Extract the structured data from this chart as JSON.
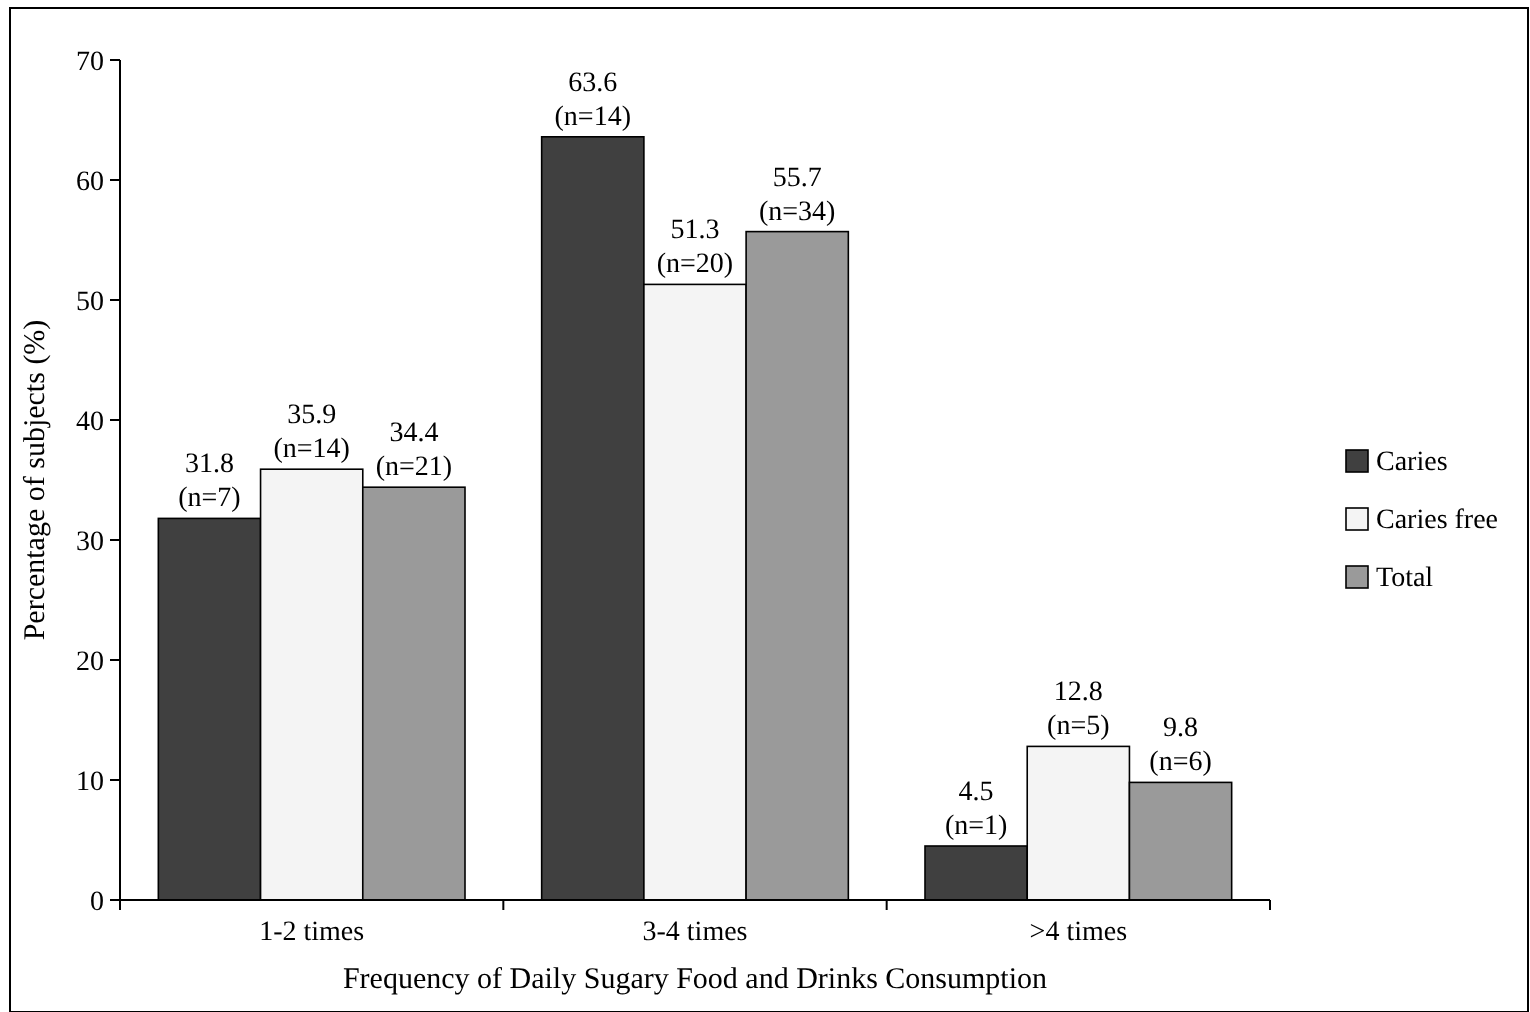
{
  "chart_data": {
    "type": "bar",
    "xlabel": "Frequency of Daily Sugary Food and Drinks Consumption",
    "ylabel": "Percentage of subjects (%)",
    "categories": [
      "1-2 times",
      "3-4 times",
      ">4 times"
    ],
    "series": [
      {
        "name": "Caries",
        "color": "#404040",
        "values": [
          31.8,
          63.6,
          4.5
        ],
        "value_labels": [
          "31.8\n(n=7)",
          "63.6\n(n=14)",
          "4.5\n(n=1)"
        ]
      },
      {
        "name": "Caries free",
        "color": "#f4f4f4",
        "values": [
          35.9,
          51.3,
          12.8
        ],
        "value_labels": [
          "35.9\n(n=14)",
          "51.3\n(n=20)",
          "12.8\n(n=5)"
        ]
      },
      {
        "name": "Total",
        "color": "#9a9a9a",
        "values": [
          34.4,
          55.7,
          9.8
        ],
        "value_labels": [
          "34.4\n(n=21)",
          "55.7\n(n=34)",
          "9.8\n(n=6)"
        ]
      }
    ],
    "ylim": [
      0,
      70
    ],
    "yticks": [
      0,
      10,
      20,
      30,
      40,
      50,
      60,
      70
    ],
    "legend": "right",
    "grid": false
  }
}
